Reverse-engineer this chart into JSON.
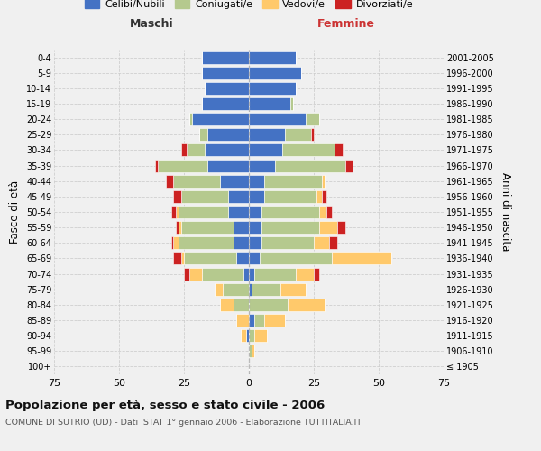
{
  "age_groups": [
    "100+",
    "95-99",
    "90-94",
    "85-89",
    "80-84",
    "75-79",
    "70-74",
    "65-69",
    "60-64",
    "55-59",
    "50-54",
    "45-49",
    "40-44",
    "35-39",
    "30-34",
    "25-29",
    "20-24",
    "15-19",
    "10-14",
    "5-9",
    "0-4"
  ],
  "birth_years": [
    "≤ 1905",
    "1906-1910",
    "1911-1915",
    "1916-1920",
    "1921-1925",
    "1926-1930",
    "1931-1935",
    "1936-1940",
    "1941-1945",
    "1946-1950",
    "1951-1955",
    "1956-1960",
    "1961-1965",
    "1966-1970",
    "1971-1975",
    "1976-1980",
    "1981-1985",
    "1986-1990",
    "1991-1995",
    "1996-2000",
    "2001-2005"
  ],
  "colors": {
    "celibi": "#4472c4",
    "coniugati": "#b5c98e",
    "vedovi": "#ffc96b",
    "divorziati": "#cc2222"
  },
  "males": {
    "celibi": [
      0,
      0,
      1,
      0,
      0,
      0,
      2,
      5,
      6,
      6,
      8,
      8,
      11,
      16,
      17,
      16,
      22,
      18,
      17,
      18,
      18
    ],
    "coniugati": [
      0,
      0,
      0,
      0,
      6,
      10,
      16,
      20,
      21,
      20,
      19,
      18,
      18,
      19,
      7,
      3,
      1,
      0,
      0,
      0,
      0
    ],
    "vedovi": [
      0,
      0,
      2,
      5,
      5,
      3,
      5,
      1,
      2,
      1,
      1,
      0,
      0,
      0,
      0,
      0,
      0,
      0,
      0,
      0,
      0
    ],
    "divorziati": [
      0,
      0,
      0,
      0,
      0,
      0,
      2,
      3,
      1,
      1,
      2,
      3,
      3,
      1,
      2,
      0,
      0,
      0,
      0,
      0,
      0
    ]
  },
  "females": {
    "celibi": [
      0,
      0,
      0,
      2,
      0,
      1,
      2,
      4,
      5,
      5,
      5,
      6,
      6,
      10,
      13,
      14,
      22,
      16,
      18,
      20,
      18
    ],
    "coniugati": [
      0,
      1,
      2,
      4,
      15,
      11,
      16,
      28,
      20,
      22,
      22,
      20,
      22,
      27,
      20,
      10,
      5,
      1,
      0,
      0,
      0
    ],
    "vedovi": [
      0,
      1,
      5,
      8,
      14,
      10,
      7,
      23,
      6,
      7,
      3,
      2,
      1,
      0,
      0,
      0,
      0,
      0,
      0,
      0,
      0
    ],
    "divorziati": [
      0,
      0,
      0,
      0,
      0,
      0,
      2,
      0,
      3,
      3,
      2,
      2,
      0,
      3,
      3,
      1,
      0,
      0,
      0,
      0,
      0
    ]
  },
  "xlim": 75,
  "title": "Popolazione per età, sesso e stato civile - 2006",
  "subtitle": "COMUNE DI SUTRIO (UD) - Dati ISTAT 1° gennaio 2006 - Elaborazione TUTTITALIA.IT",
  "xlabel_left": "Maschi",
  "xlabel_right": "Femmine",
  "ylabel_left": "Fasce di età",
  "ylabel_right": "Anni di nascita",
  "legend_labels": [
    "Celibi/Nubili",
    "Coniugati/e",
    "Vedovi/e",
    "Divorziati/e"
  ],
  "bg_color": "#f0f0f0",
  "grid_color": "#cccccc"
}
